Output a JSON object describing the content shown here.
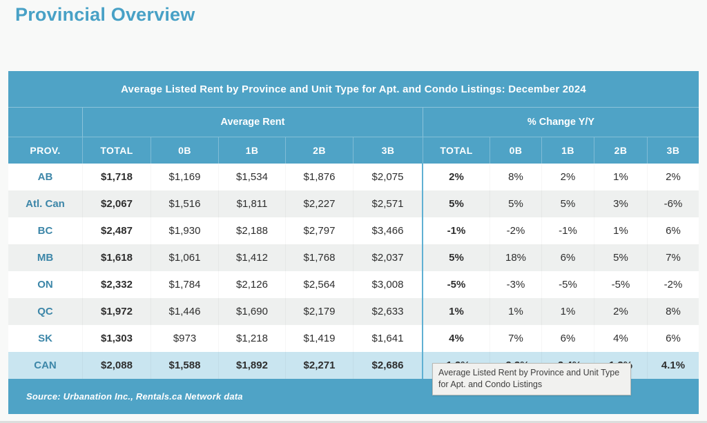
{
  "page": {
    "heading": "Provincial Overview"
  },
  "chart_data": {
    "type": "table",
    "title": "Average Listed Rent by Province and Unit Type for Apt. and Condo Listings: December 2024",
    "group_headers": [
      "Average Rent",
      "% Change Y/Y"
    ],
    "columns": [
      "PROV.",
      "TOTAL",
      "0B",
      "1B",
      "2B",
      "3B",
      "TOTAL",
      "0B",
      "1B",
      "2B",
      "3B"
    ],
    "rows": [
      {
        "prov": "AB",
        "rent": [
          "$1,718",
          "$1,169",
          "$1,534",
          "$1,876",
          "$2,075"
        ],
        "change": [
          "2%",
          "8%",
          "2%",
          "1%",
          "2%"
        ],
        "highlight": false
      },
      {
        "prov": "Atl. Can",
        "rent": [
          "$2,067",
          "$1,516",
          "$1,811",
          "$2,227",
          "$2,571"
        ],
        "change": [
          "5%",
          "5%",
          "5%",
          "3%",
          "-6%"
        ],
        "highlight": false
      },
      {
        "prov": "BC",
        "rent": [
          "$2,487",
          "$1,930",
          "$2,188",
          "$2,797",
          "$3,466"
        ],
        "change": [
          "-1%",
          "-2%",
          "-1%",
          "1%",
          "6%"
        ],
        "highlight": false
      },
      {
        "prov": "MB",
        "rent": [
          "$1,618",
          "$1,061",
          "$1,412",
          "$1,768",
          "$2,037"
        ],
        "change": [
          "5%",
          "18%",
          "6%",
          "5%",
          "7%"
        ],
        "highlight": false
      },
      {
        "prov": "ON",
        "rent": [
          "$2,332",
          "$1,784",
          "$2,126",
          "$2,564",
          "$3,008"
        ],
        "change": [
          "-5%",
          "-3%",
          "-5%",
          "-5%",
          "-2%"
        ],
        "highlight": false
      },
      {
        "prov": "QC",
        "rent": [
          "$1,972",
          "$1,446",
          "$1,690",
          "$2,179",
          "$2,633"
        ],
        "change": [
          "1%",
          "1%",
          "1%",
          "2%",
          "8%"
        ],
        "highlight": false
      },
      {
        "prov": "SK",
        "rent": [
          "$1,303",
          "$973",
          "$1,218",
          "$1,419",
          "$1,641"
        ],
        "change": [
          "4%",
          "7%",
          "6%",
          "4%",
          "6%"
        ],
        "highlight": false
      },
      {
        "prov": "CAN",
        "rent": [
          "$2,088",
          "$1,588",
          "$1,892",
          "$2,271",
          "$2,686"
        ],
        "change": [
          "-1.2%",
          "-2.3%",
          "-2.4%",
          "1.3%",
          "4.1%"
        ],
        "highlight": true
      }
    ],
    "source": "Source: Urbanation Inc., Rentals.ca Network data"
  },
  "tooltip": {
    "line1": "Average Listed Rent by Province and Unit Type",
    "line2": "for Apt. and Condo Listings"
  },
  "colors": {
    "accent_blue": "#4fa3c6",
    "heading_blue": "#48a1c6",
    "province_text": "#3c86a8",
    "stripe_gray": "#eef0ef",
    "highlight_row_blue": "#c9e5f0",
    "divider_blue": "#5fb0d3",
    "tooltip_bg": "#f1f1ef"
  }
}
